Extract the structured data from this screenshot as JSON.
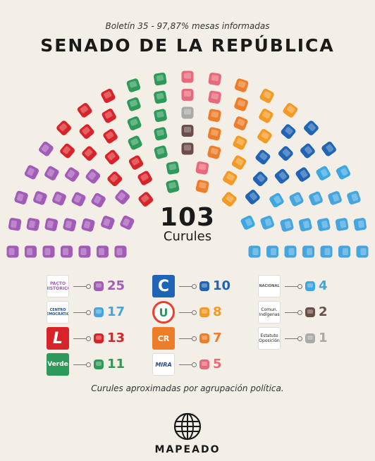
{
  "header": {
    "subtitle": "Boletín 35 - 97,87% mesas informadas",
    "title": "SENADO DE LA REPÚBLICA"
  },
  "center": {
    "total": "103",
    "label": "Curules"
  },
  "chart_data": {
    "type": "parliament",
    "title": "SENADO DE LA REPÚBLICA",
    "subtitle": "Boletín 35 - 97,87% mesas informadas",
    "total": 103,
    "rows": 7,
    "series": [
      {
        "name": "Pacto Histórico",
        "value": 25,
        "color": "#a35bb8"
      },
      {
        "name": "Liberal",
        "value": 13,
        "color": "#d8232a"
      },
      {
        "name": "Verde",
        "value": 11,
        "color": "#2e9a5a"
      },
      {
        "name": "Comun. Indígenas",
        "value": 2,
        "color": "#6b4d4a"
      },
      {
        "name": "Estatuto Oposición",
        "value": 1,
        "color": "#a9a9a9"
      },
      {
        "name": "MIRA",
        "value": 5,
        "color": "#e8697b"
      },
      {
        "name": "Cambio Radical",
        "value": 7,
        "color": "#ee7d2a"
      },
      {
        "name": "La U",
        "value": 8,
        "color": "#f39a24"
      },
      {
        "name": "Conservador",
        "value": 10,
        "color": "#1f64b5"
      },
      {
        "name": "Salvación Nacional",
        "value": 4,
        "color": "#3ca7e1"
      },
      {
        "name": "Centro Democrático",
        "value": 17,
        "color": "#45a6df"
      }
    ]
  },
  "legend": {
    "col1": [
      {
        "logo": "PACTO HISTÓRICO",
        "count": "25",
        "color": "#a35bb8"
      },
      {
        "logo": "CENTRO DEMOCRÁTICO",
        "count": "17",
        "color": "#45a6df"
      },
      {
        "logo": "L",
        "count": "13",
        "color": "#d8232a"
      },
      {
        "logo": "Verde",
        "count": "11",
        "color": "#2e9a5a"
      }
    ],
    "col2": [
      {
        "logo": "C",
        "count": "10",
        "color": "#1f64b5"
      },
      {
        "logo": "U",
        "count": "8",
        "color": "#f39a24"
      },
      {
        "logo": "CR",
        "count": "7",
        "color": "#ee7d2a"
      },
      {
        "logo": "MIRA",
        "count": "5",
        "color": "#e8697b"
      }
    ],
    "col3": [
      {
        "logo": "NACIONAL",
        "count": "4",
        "color": "#3ca7e1"
      },
      {
        "logo": "Comun. Indígenas",
        "count": "2",
        "color": "#6b4d4a"
      },
      {
        "logo": "Estatuto Oposición",
        "count": "1",
        "color": "#a9a9a9"
      }
    ]
  },
  "footer": {
    "note": "Curules aproximadas por agrupación política.",
    "brand": "MAPEADO"
  }
}
